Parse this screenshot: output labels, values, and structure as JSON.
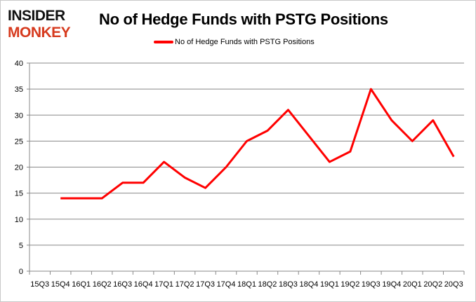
{
  "logo": {
    "line1": "INSIDER",
    "line2": "MONKEY"
  },
  "colors": {
    "series": "#ff0000",
    "grid": "#888888",
    "logo_top": "#111111",
    "logo_bottom": "#d63a1e"
  },
  "chart_data": {
    "type": "line",
    "title": "No of Hedge Funds with PSTG Positions",
    "xlabel": "",
    "ylabel": "",
    "ylim": [
      0,
      40
    ],
    "yticks": [
      0,
      5,
      10,
      15,
      20,
      25,
      30,
      35,
      40
    ],
    "grid": true,
    "legend_position": "top",
    "categories": [
      "15Q3",
      "15Q4",
      "16Q1",
      "16Q2",
      "16Q3",
      "16Q4",
      "17Q1",
      "17Q2",
      "17Q3",
      "17Q4",
      "18Q1",
      "18Q2",
      "18Q3",
      "18Q4",
      "19Q1",
      "19Q2",
      "19Q3",
      "19Q4",
      "20Q1",
      "20Q2",
      "20Q3"
    ],
    "series": [
      {
        "name": "No of Hedge Funds with PSTG Positions",
        "values": [
          null,
          14,
          14,
          14,
          17,
          17,
          21,
          18,
          16,
          20,
          25,
          27,
          31,
          26,
          21,
          23,
          35,
          29,
          25,
          29,
          22
        ]
      }
    ]
  }
}
